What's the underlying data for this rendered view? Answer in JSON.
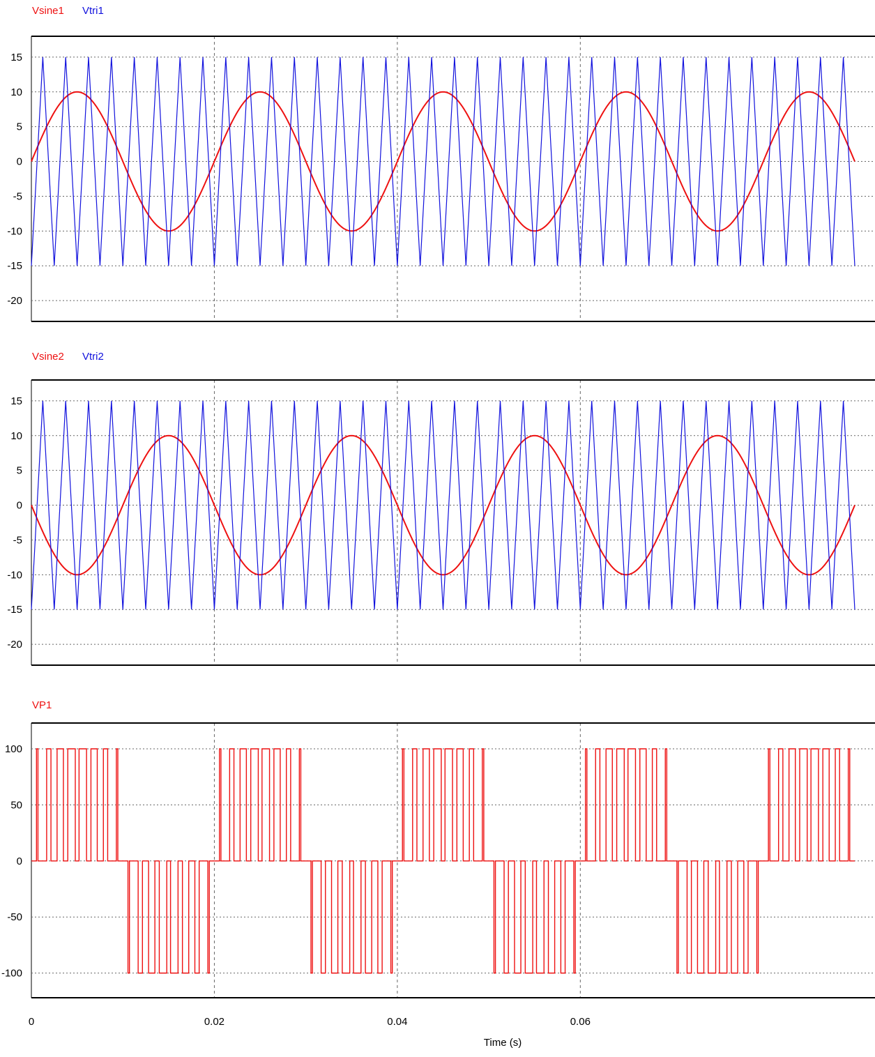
{
  "chart_data": [
    {
      "type": "line",
      "legend_placement": "top-left",
      "ylim": [
        -23,
        18
      ],
      "xlim": [
        0,
        0.09
      ],
      "yticks": [
        15,
        10,
        5,
        0,
        -5,
        -10,
        -15,
        -20
      ],
      "grid": true,
      "series": [
        {
          "name": "Vsine1",
          "color": "#ee1111",
          "kind": "sine",
          "amplitude": 10,
          "frequency_hz": 50,
          "phase_deg": 0
        },
        {
          "name": "Vtri1",
          "color": "#1111dd",
          "kind": "triangle",
          "min": -15,
          "max": 15,
          "frequency_hz": 400,
          "start": "min"
        }
      ]
    },
    {
      "type": "line",
      "legend_placement": "top-left",
      "ylim": [
        -23,
        18
      ],
      "xlim": [
        0,
        0.09
      ],
      "yticks": [
        15,
        10,
        5,
        0,
        -5,
        -10,
        -15,
        -20
      ],
      "grid": true,
      "series": [
        {
          "name": "Vsine2",
          "color": "#ee1111",
          "kind": "sine",
          "amplitude": 10,
          "frequency_hz": 50,
          "phase_deg": 180
        },
        {
          "name": "Vtri2",
          "color": "#1111dd",
          "kind": "triangle",
          "min": -15,
          "max": 15,
          "frequency_hz": 400,
          "start": "min"
        }
      ]
    },
    {
      "type": "line",
      "legend_placement": "top-left",
      "ylim": [
        -122,
        123
      ],
      "xlim": [
        0,
        0.09
      ],
      "yticks": [
        100,
        50,
        0,
        -50,
        -100
      ],
      "grid": true,
      "xlabel": "Time (s)",
      "xticks": [
        {
          "value": 0,
          "label": "0"
        },
        {
          "value": 0.02,
          "label": "0.02"
        },
        {
          "value": 0.04,
          "label": "0.04"
        },
        {
          "value": 0.06,
          "label": "0.06"
        }
      ],
      "series": [
        {
          "name": "VP1",
          "color": "#ee1111",
          "kind": "pwm",
          "level": 100,
          "derived_from": [
            "Vsine1",
            "Vtri1",
            "Vsine2",
            "Vtri2"
          ]
        }
      ]
    }
  ]
}
